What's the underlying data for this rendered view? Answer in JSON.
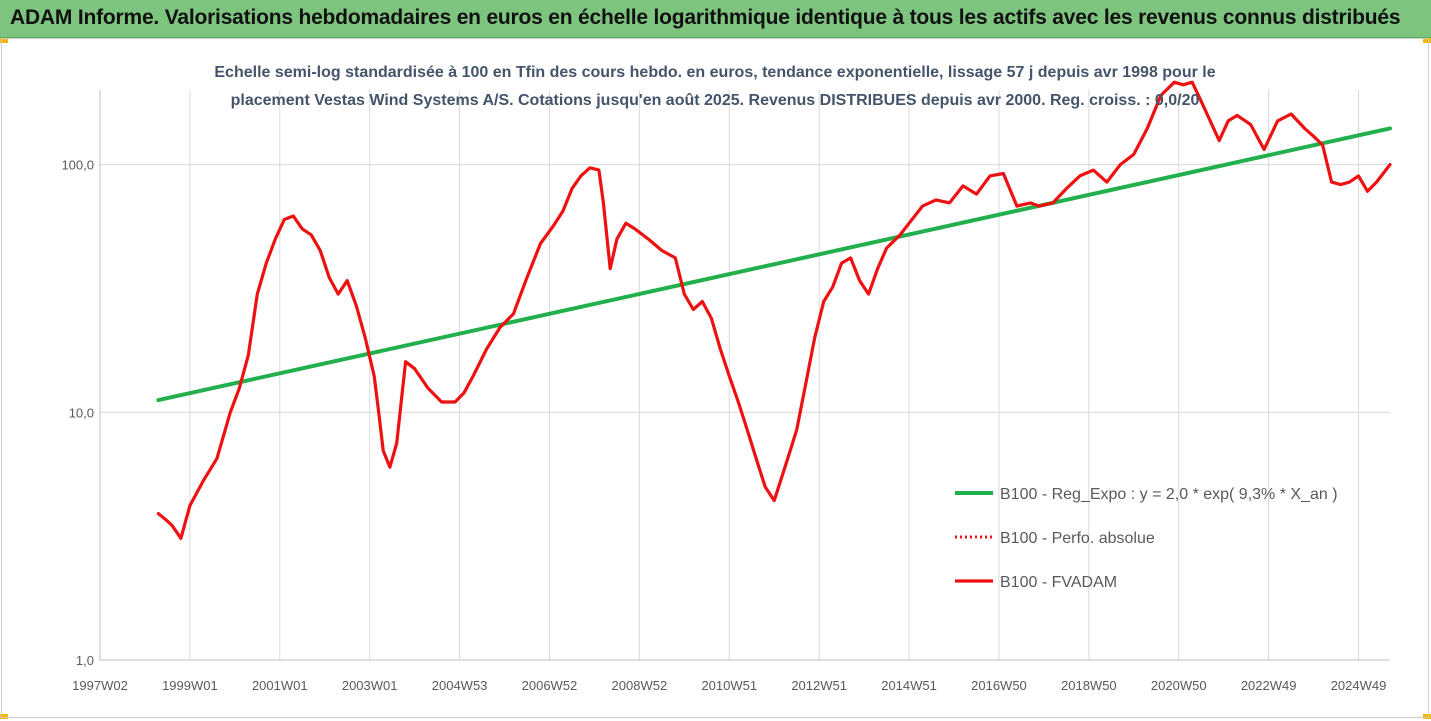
{
  "header": {
    "title": "ADAM Informe. Valorisations hebdomadaires en euros en échelle logarithmique identique à tous les actifs avec les revenus connus distribués"
  },
  "colors": {
    "header_bg": "#7dc47e",
    "trend": "#21b04b",
    "series": "#ee1111",
    "subtitle": "#44546a",
    "axis_text": "#595959",
    "grid": "#d9d9d9"
  },
  "chart_data": {
    "type": "line",
    "subtitle_line1": "Echelle semi-log standardisée à 100 en Tfin des cours hebdo. en euros, tendance exponentielle, lissage 57 j depuis avr 1998 pour le",
    "subtitle_line2": "placement Vestas Wind Systems A/S. Cotations jusqu'en août 2025. Revenus DISTRIBUES depuis avr 2000. Reg. croiss. : 0,0/20",
    "y_scale": "log",
    "ylim": [
      1,
      200
    ],
    "y_ticks": [
      {
        "value": 1,
        "label": "1,0"
      },
      {
        "value": 10,
        "label": "10,0"
      },
      {
        "value": 100,
        "label": "100,0"
      }
    ],
    "xlim": [
      1997.0,
      2025.7
    ],
    "x_ticks": [
      {
        "t": 1997.0,
        "label": "1997W02"
      },
      {
        "t": 1999.0,
        "label": "1999W01"
      },
      {
        "t": 2001.0,
        "label": "2001W01"
      },
      {
        "t": 2003.0,
        "label": "2003W01"
      },
      {
        "t": 2005.0,
        "label": "2004W53"
      },
      {
        "t": 2007.0,
        "label": "2006W52"
      },
      {
        "t": 2009.0,
        "label": "2008W52"
      },
      {
        "t": 2011.0,
        "label": "2010W51"
      },
      {
        "t": 2013.0,
        "label": "2012W51"
      },
      {
        "t": 2015.0,
        "label": "2014W51"
      },
      {
        "t": 2017.0,
        "label": "2016W50"
      },
      {
        "t": 2019.0,
        "label": "2018W50"
      },
      {
        "t": 2021.0,
        "label": "2020W50"
      },
      {
        "t": 2023.0,
        "label": "2022W49"
      },
      {
        "t": 2025.0,
        "label": "2024W49"
      }
    ],
    "grid": true,
    "legend_position": "bottom-right",
    "series": [
      {
        "name": "B100 - Reg_Expo : y = 2,0 * exp( 9,3% *  X_an )",
        "style": "solid-green",
        "t": [
          1998.3,
          2025.7
        ],
        "values": [
          11.2,
          140
        ]
      },
      {
        "name": "B100 - Perfo. absolue",
        "style": "dotted-red",
        "t": [],
        "values": []
      },
      {
        "name": "B100 - FVADAM",
        "style": "solid-red",
        "t": [
          1998.3,
          1998.45,
          1998.6,
          1998.8,
          1999.0,
          1999.3,
          1999.6,
          1999.9,
          2000.1,
          2000.3,
          2000.5,
          2000.7,
          2000.9,
          2001.1,
          2001.3,
          2001.5,
          2001.7,
          2001.9,
          2002.1,
          2002.3,
          2002.5,
          2002.7,
          2002.9,
          2003.1,
          2003.2,
          2003.3,
          2003.45,
          2003.6,
          2003.8,
          2004.0,
          2004.3,
          2004.6,
          2004.9,
          2005.1,
          2005.3,
          2005.6,
          2005.9,
          2006.2,
          2006.5,
          2006.8,
          2007.1,
          2007.3,
          2007.5,
          2007.7,
          2007.9,
          2008.1,
          2008.2,
          2008.35,
          2008.5,
          2008.7,
          2008.9,
          2009.2,
          2009.5,
          2009.8,
          2010.0,
          2010.2,
          2010.4,
          2010.6,
          2010.8,
          2011.0,
          2011.2,
          2011.4,
          2011.6,
          2011.8,
          2012.0,
          2012.3,
          2012.5,
          2012.7,
          2012.9,
          2013.1,
          2013.3,
          2013.5,
          2013.7,
          2013.9,
          2014.1,
          2014.3,
          2014.5,
          2014.8,
          2015.0,
          2015.3,
          2015.6,
          2015.9,
          2016.2,
          2016.5,
          2016.8,
          2017.1,
          2017.4,
          2017.7,
          2017.9,
          2018.2,
          2018.5,
          2018.8,
          2019.1,
          2019.4,
          2019.7,
          2020.0,
          2020.3,
          2020.6,
          2020.9,
          2021.1,
          2021.3,
          2021.5,
          2021.7,
          2021.9,
          2022.1,
          2022.3,
          2022.6,
          2022.9,
          2023.2,
          2023.5,
          2023.8,
          2024.0,
          2024.2,
          2024.4,
          2024.6,
          2024.8,
          2025.0,
          2025.2,
          2025.4,
          2025.7
        ],
        "values": [
          3.9,
          3.7,
          3.5,
          3.1,
          4.2,
          5.3,
          6.5,
          10.0,
          12.5,
          17.0,
          30.0,
          40.0,
          50.0,
          60.0,
          62.0,
          55.0,
          52.0,
          45.0,
          35.0,
          30.0,
          34.0,
          27.0,
          20.0,
          14.0,
          10.0,
          7.0,
          6.0,
          7.5,
          16.0,
          15.0,
          12.5,
          11.0,
          11.0,
          12.0,
          14.0,
          18.0,
          22.0,
          25.0,
          35.0,
          48.0,
          57.0,
          65.0,
          80.0,
          90.0,
          97.0,
          95.0,
          70.0,
          38.0,
          50.0,
          58.0,
          55.0,
          50.0,
          45.0,
          42.0,
          30.0,
          26.0,
          28.0,
          24.0,
          18.0,
          14.0,
          11.0,
          8.5,
          6.5,
          5.0,
          4.4,
          6.5,
          8.5,
          13.0,
          20.0,
          28.0,
          32.0,
          40.0,
          42.0,
          34.0,
          30.0,
          38.0,
          46.0,
          52.0,
          58.0,
          68.0,
          72.0,
          70.0,
          82.0,
          76.0,
          90.0,
          92.0,
          68.0,
          70.0,
          68.0,
          70.0,
          80.0,
          90.0,
          95.0,
          85.0,
          100.0,
          110.0,
          140.0,
          190.0,
          215.0,
          210.0,
          215.0,
          180.0,
          150.0,
          125.0,
          150.0,
          158.0,
          145.0,
          115.0,
          150.0,
          160.0,
          140.0,
          130.0,
          120.0,
          85.0,
          83.0,
          85.0,
          90.0,
          78.0,
          85.0,
          100.0
        ]
      }
    ]
  }
}
